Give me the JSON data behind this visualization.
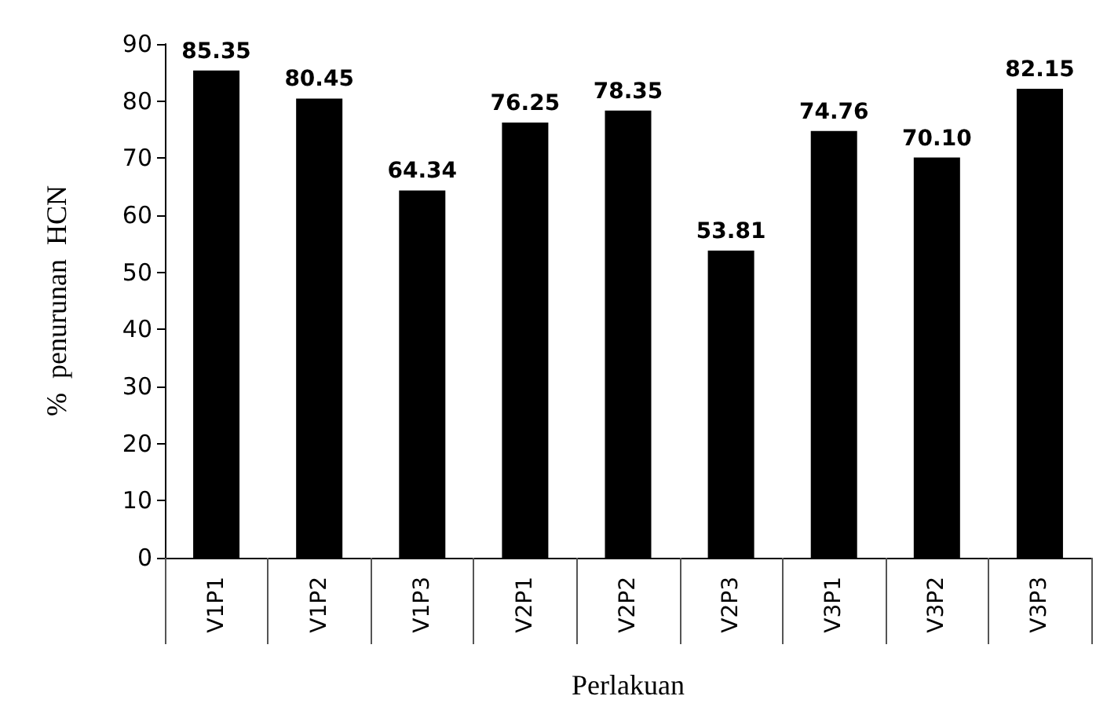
{
  "chart_data": {
    "type": "bar",
    "xlabel": "Perlakuan",
    "ylabel": "%  penurunan  HCN",
    "categories": [
      "V1P1",
      "V1P2",
      "V1P3",
      "V2P1",
      "V2P2",
      "V2P3",
      "V3P1",
      "V3P2",
      "V3P3"
    ],
    "values": [
      85.35,
      80.45,
      64.34,
      76.25,
      78.35,
      53.81,
      74.76,
      70.1,
      82.15
    ],
    "value_labels": [
      "85.35",
      "80.45",
      "64.34",
      "76.25",
      "78.35",
      "53.81",
      "74.76",
      "70.10",
      "82.15"
    ],
    "color": "#000000",
    "ylim": [
      0,
      90
    ],
    "yticks": [
      0,
      10,
      20,
      30,
      40,
      50,
      60,
      70,
      80,
      90
    ],
    "grid": false
  }
}
